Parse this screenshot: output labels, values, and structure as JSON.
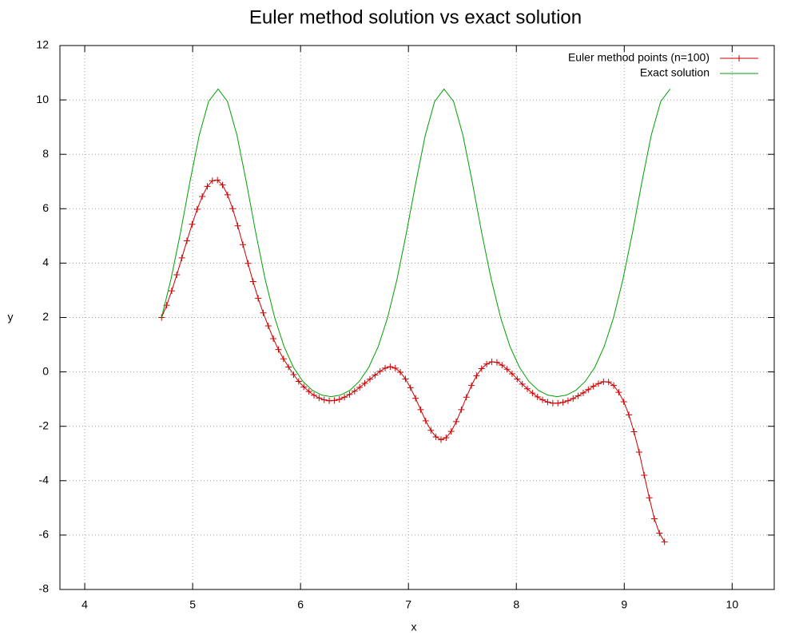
{
  "chart_data": {
    "type": "line",
    "title": "Euler method solution vs exact solution",
    "x_label": "x",
    "y_label": "y",
    "xlim": [
      3.77,
      10.39
    ],
    "ylim": [
      -8,
      12
    ],
    "xticks": [
      4,
      5,
      6,
      7,
      8,
      9,
      10
    ],
    "yticks": [
      -8,
      -6,
      -4,
      -2,
      0,
      2,
      4,
      6,
      8,
      10,
      12
    ],
    "grid": true,
    "legend": "top-right",
    "series": [
      {
        "name": "Euler method points (n=100)",
        "color": "#cc0000",
        "marker": "+",
        "x": [
          4.712,
          4.759,
          4.806,
          4.853,
          4.9,
          4.947,
          4.995,
          5.042,
          5.089,
          5.136,
          5.183,
          5.23,
          5.277,
          5.324,
          5.371,
          5.418,
          5.466,
          5.513,
          5.56,
          5.607,
          5.654,
          5.701,
          5.748,
          5.795,
          5.842,
          5.889,
          5.936,
          5.983,
          6.03,
          6.078,
          6.125,
          6.172,
          6.219,
          6.266,
          6.313,
          6.36,
          6.407,
          6.454,
          6.501,
          6.548,
          6.595,
          6.643,
          6.69,
          6.737,
          6.784,
          6.831,
          6.878,
          6.925,
          6.972,
          7.019,
          7.066,
          7.113,
          7.16,
          7.208,
          7.255,
          7.302,
          7.349,
          7.396,
          7.443,
          7.49,
          7.537,
          7.584,
          7.631,
          7.678,
          7.725,
          7.773,
          7.82,
          7.867,
          7.914,
          7.961,
          8.008,
          8.055,
          8.102,
          8.149,
          8.196,
          8.243,
          8.29,
          8.338,
          8.385,
          8.432,
          8.479,
          8.526,
          8.573,
          8.62,
          8.667,
          8.714,
          8.761,
          8.808,
          8.855,
          8.902,
          8.949,
          8.996,
          9.043,
          9.09,
          9.138,
          9.185,
          9.232,
          9.279,
          9.326,
          9.373
        ],
        "values": [
          2.0,
          2.45,
          2.98,
          3.57,
          4.19,
          4.82,
          5.43,
          5.98,
          6.45,
          6.82,
          7.03,
          7.05,
          6.87,
          6.51,
          6.0,
          5.37,
          4.68,
          3.99,
          3.32,
          2.71,
          2.17,
          1.69,
          1.22,
          0.82,
          0.48,
          0.18,
          -0.1,
          -0.35,
          -0.55,
          -0.72,
          -0.86,
          -0.96,
          -1.03,
          -1.06,
          -1.05,
          -1.01,
          -0.93,
          -0.83,
          -0.71,
          -0.57,
          -0.42,
          -0.27,
          -0.12,
          0.02,
          0.14,
          0.19,
          0.14,
          -0.01,
          -0.26,
          -0.58,
          -0.97,
          -1.39,
          -1.8,
          -2.15,
          -2.39,
          -2.49,
          -2.42,
          -2.19,
          -1.83,
          -1.39,
          -0.93,
          -0.5,
          -0.14,
          0.12,
          0.29,
          0.37,
          0.35,
          0.25,
          0.1,
          -0.07,
          -0.26,
          -0.45,
          -0.62,
          -0.78,
          -0.92,
          -1.03,
          -1.11,
          -1.15,
          -1.15,
          -1.12,
          -1.06,
          -0.98,
          -0.88,
          -0.77,
          -0.65,
          -0.53,
          -0.43,
          -0.36,
          -0.37,
          -0.5,
          -0.75,
          -1.1,
          -1.58,
          -2.2,
          -2.95,
          -3.8,
          -4.63,
          -5.4,
          -5.93,
          -6.25
        ]
      },
      {
        "name": "Exact solution",
        "color": "#00a000",
        "x": [
          4.712,
          4.799,
          4.887,
          4.974,
          5.061,
          5.148,
          5.236,
          5.323,
          5.411,
          5.498,
          5.585,
          5.672,
          5.76,
          5.847,
          5.934,
          6.021,
          6.109,
          6.196,
          6.283,
          6.37,
          6.458,
          6.545,
          6.632,
          6.72,
          6.807,
          6.894,
          6.981,
          7.069,
          7.156,
          7.243,
          7.33,
          7.418,
          7.505,
          7.592,
          7.679,
          7.767,
          7.854,
          7.941,
          8.029,
          8.116,
          8.203,
          8.29,
          8.378,
          8.465,
          8.552,
          8.639,
          8.727,
          8.814,
          8.901,
          8.988,
          9.076,
          9.163,
          9.25,
          9.338,
          9.425
        ],
        "values": [
          2,
          3.406,
          5.112,
          6.97,
          8.699,
          9.944,
          10.4,
          9.944,
          8.699,
          6.97,
          5.112,
          3.406,
          2,
          0.932,
          0.168,
          -0.349,
          -0.675,
          -0.853,
          -0.91,
          -0.853,
          -0.675,
          -0.349,
          0.168,
          0.932,
          2,
          3.406,
          5.112,
          6.97,
          8.699,
          9.944,
          10.4,
          9.944,
          8.699,
          6.97,
          5.112,
          3.406,
          2,
          0.932,
          0.168,
          -0.349,
          -0.675,
          -0.853,
          -0.91,
          -0.853,
          -0.675,
          -0.349,
          0.168,
          0.932,
          2,
          3.406,
          5.112,
          6.97,
          8.699,
          9.944,
          10.4
        ]
      }
    ]
  }
}
